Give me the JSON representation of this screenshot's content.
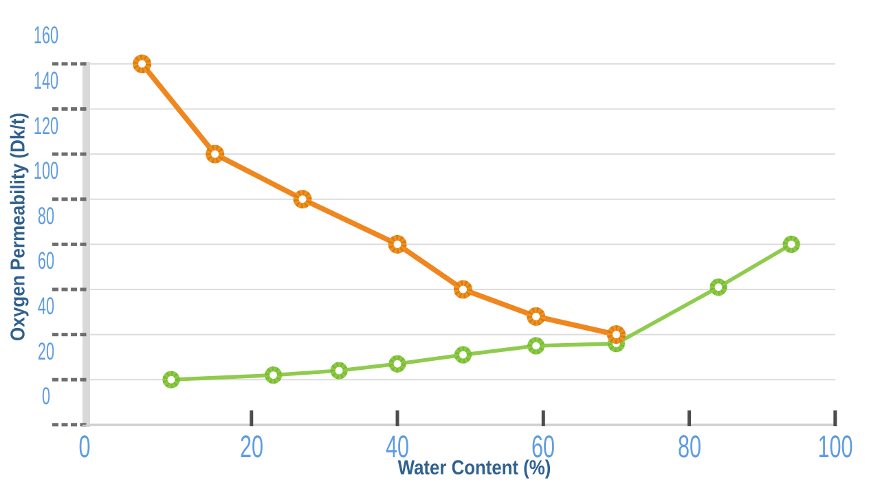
{
  "chart_data": {
    "type": "line",
    "title": "",
    "xlabel": "Water Content (%)",
    "ylabel": "Oxygen Permeability (Dk/t)",
    "xlim": [
      0,
      100
    ],
    "ylim": [
      0,
      160
    ],
    "x_ticks": [
      0,
      20,
      40,
      60,
      80,
      100
    ],
    "y_ticks": [
      0,
      20,
      40,
      60,
      80,
      100,
      120,
      140,
      160
    ],
    "grid": "horizontal",
    "legend": false,
    "style": {
      "tick_label_color": "#5E9CE4",
      "axis_title_color": "#30618F",
      "gridline_color": "#DCDCDC",
      "zero_line_color": "#CFCFCF",
      "axis_bar_color": "#D9D9D9",
      "dash_stub_color": "#6E6E6E",
      "x_tick_mark_color": "#4D4D4D",
      "background": "#FFFFFF"
    },
    "series": [
      {
        "name": "orange-declining",
        "color": "#F0861E",
        "marker": "ring",
        "marker_color": "#F2921C",
        "marker_texture_color": "#C2690E",
        "line_width": 7.5,
        "points": [
          [
            5,
            160
          ],
          [
            15,
            120
          ],
          [
            27,
            100
          ],
          [
            40,
            80
          ],
          [
            49,
            60
          ],
          [
            59,
            48
          ],
          [
            70,
            40
          ]
        ]
      },
      {
        "name": "green-rising",
        "color": "#8FCB4D",
        "marker": "ring",
        "marker_color": "#8BCA42",
        "marker_texture_color": "#6FAD2D",
        "line_width": 5.5,
        "points": [
          [
            9,
            20
          ],
          [
            23,
            22
          ],
          [
            32,
            24
          ],
          [
            40,
            27
          ],
          [
            49,
            31
          ],
          [
            59,
            35
          ],
          [
            70,
            36
          ],
          [
            84,
            61
          ],
          [
            94,
            80
          ]
        ]
      }
    ]
  }
}
